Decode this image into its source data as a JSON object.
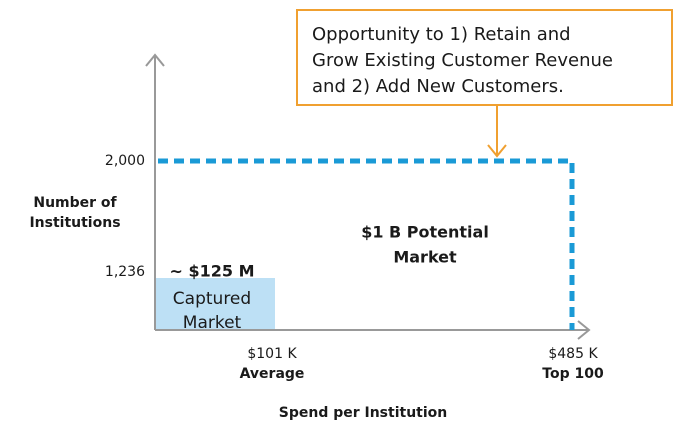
{
  "annotation": {
    "lines": [
      "Opportunity to 1) Retain and",
      "Grow Existing Customer Revenue",
      "and 2) Add New Customers."
    ]
  },
  "y_axis": {
    "title": [
      "Number of",
      "Institutions"
    ],
    "ticks": [
      "2,000",
      "1,236"
    ]
  },
  "x_axis": {
    "title": "Spend per Institution",
    "ticks": [
      {
        "value": "$101 K",
        "label": "Average"
      },
      {
        "value": "$485 K",
        "label": "Top 100"
      }
    ]
  },
  "captured": {
    "amount": "~ $125 M",
    "label": [
      "Captured",
      "Market"
    ]
  },
  "potential": {
    "label": [
      "$1 B Potential",
      "Market"
    ]
  }
}
